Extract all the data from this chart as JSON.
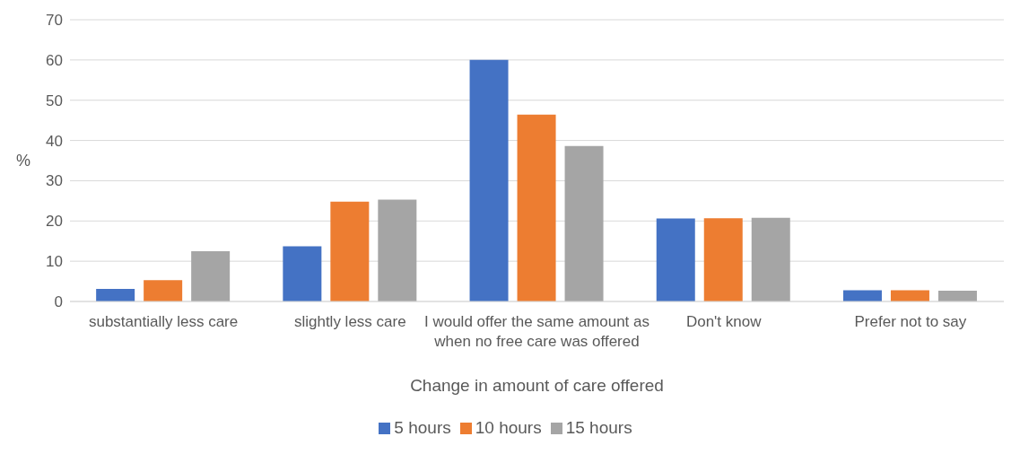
{
  "chart_data": {
    "type": "bar",
    "xlabel": "Change in amount of care offered",
    "ylabel": "%",
    "categories": [
      "substantially less care",
      "slightly less care",
      "I would offer the same amount as when no free care was offered",
      "Don't know",
      "Prefer not to say"
    ],
    "series": [
      {
        "name": "5 hours",
        "color": "#4472c4",
        "values": [
          3.1,
          13.7,
          60,
          20.6,
          2.8
        ]
      },
      {
        "name": "10 hours",
        "color": "#ed7d31",
        "values": [
          5.3,
          24.8,
          46.4,
          20.7,
          2.8
        ]
      },
      {
        "name": "15 hours",
        "color": "#a5a5a5",
        "values": [
          12.5,
          25.3,
          38.6,
          20.8,
          2.7
        ]
      }
    ],
    "ylim": [
      0,
      70
    ],
    "yticks": [
      0,
      10,
      20,
      30,
      40,
      50,
      60,
      70
    ],
    "grid": "y",
    "legend": "bottom"
  }
}
